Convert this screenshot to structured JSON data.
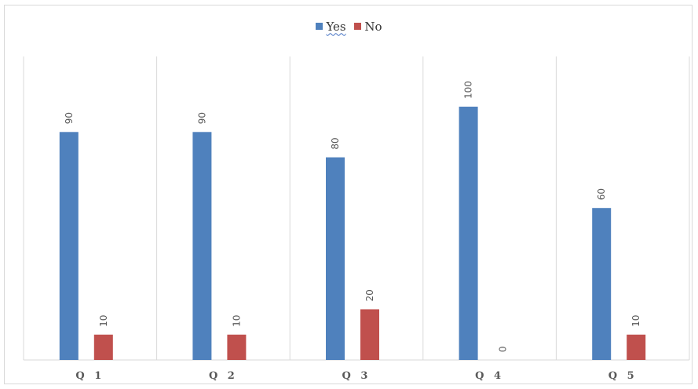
{
  "chart_data": {
    "type": "bar",
    "categories": [
      "Q 1",
      "Q 2",
      "Q 3",
      "Q 4",
      "Q 5"
    ],
    "series": [
      {
        "name": "Yes",
        "color": "#4f81bd",
        "values": [
          90,
          90,
          80,
          100,
          60
        ]
      },
      {
        "name": "No",
        "color": "#c0504d",
        "values": [
          10,
          10,
          20,
          0,
          10
        ]
      }
    ],
    "ylim": [
      0,
      100
    ],
    "legend_position": "top-center",
    "grid": "vertical-category-separators",
    "data_labels": "rotated-vertical"
  }
}
